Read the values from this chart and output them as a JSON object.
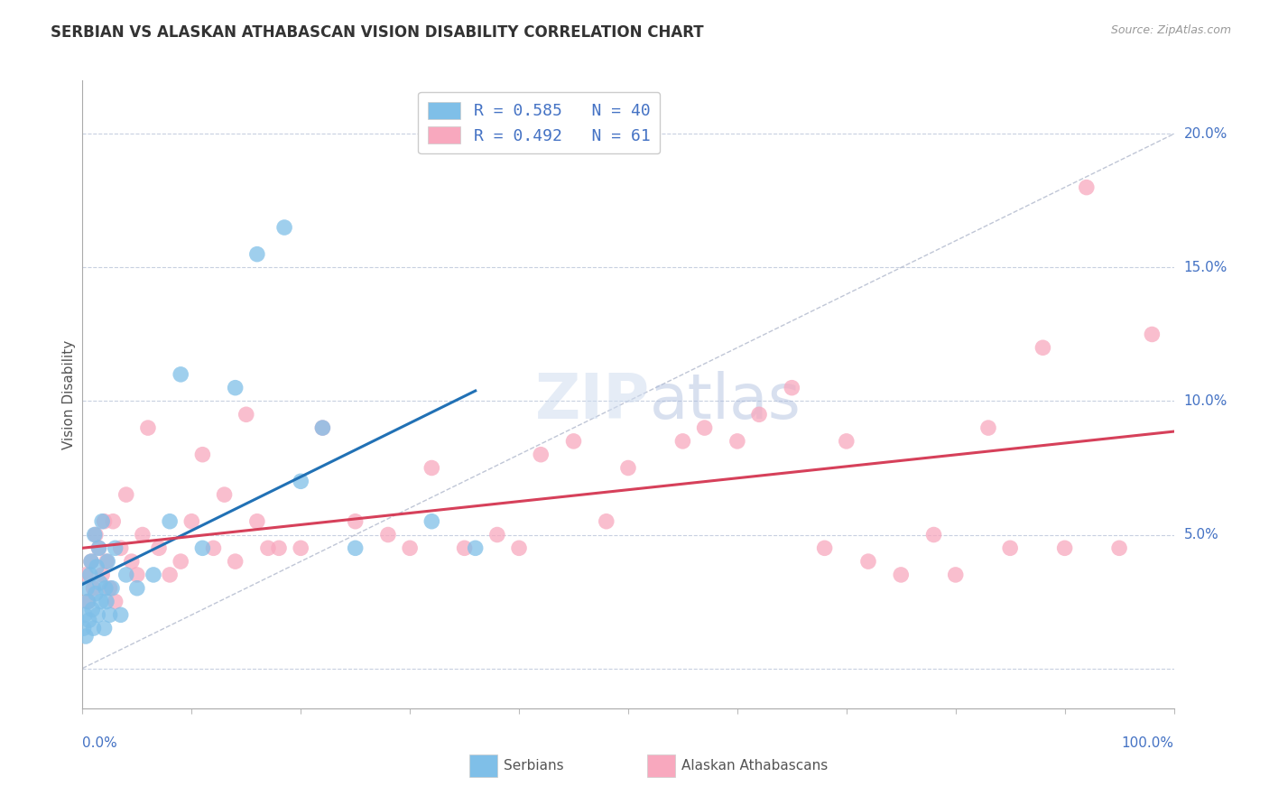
{
  "title": "SERBIAN VS ALASKAN ATHABASCAN VISION DISABILITY CORRELATION CHART",
  "source": "Source: ZipAtlas.com",
  "ylabel": "Vision Disability",
  "ytick_values": [
    0.0,
    5.0,
    10.0,
    15.0,
    20.0
  ],
  "serbian_color": "#7fbfe8",
  "athabascan_color": "#f8a8be",
  "serbian_line_color": "#2171b5",
  "athabascan_line_color": "#d6405a",
  "diagonal_color": "#b0b8cc",
  "grid_color": "#c8d0e0",
  "r_serbian": 0.585,
  "n_serbian": 40,
  "r_athabascan": 0.492,
  "n_athabascan": 61,
  "serbian_x": [
    0.1,
    0.2,
    0.3,
    0.4,
    0.5,
    0.6,
    0.7,
    0.8,
    0.9,
    1.0,
    1.1,
    1.2,
    1.3,
    1.4,
    1.5,
    1.6,
    1.7,
    1.8,
    2.0,
    2.1,
    2.2,
    2.3,
    2.5,
    2.7,
    3.0,
    3.5,
    4.0,
    5.0,
    6.5,
    8.0,
    9.0,
    11.0,
    14.0,
    16.0,
    18.5,
    20.0,
    22.0,
    25.0,
    32.0,
    36.0
  ],
  "serbian_y": [
    1.5,
    2.0,
    1.2,
    3.0,
    2.5,
    1.8,
    3.5,
    4.0,
    2.2,
    1.5,
    5.0,
    2.8,
    3.8,
    2.0,
    4.5,
    3.2,
    2.5,
    5.5,
    1.5,
    3.0,
    2.5,
    4.0,
    2.0,
    3.0,
    4.5,
    2.0,
    3.5,
    3.0,
    3.5,
    5.5,
    11.0,
    4.5,
    10.5,
    15.5,
    16.5,
    7.0,
    9.0,
    4.5,
    5.5,
    4.5
  ],
  "athabascan_x": [
    0.3,
    0.5,
    0.8,
    1.0,
    1.2,
    1.5,
    1.8,
    2.0,
    2.2,
    2.5,
    2.8,
    3.0,
    3.5,
    4.0,
    4.5,
    5.0,
    5.5,
    6.0,
    7.0,
    8.0,
    9.0,
    10.0,
    11.0,
    12.0,
    13.0,
    14.0,
    15.0,
    16.0,
    17.0,
    18.0,
    20.0,
    22.0,
    25.0,
    28.0,
    30.0,
    32.0,
    35.0,
    38.0,
    40.0,
    42.0,
    45.0,
    48.0,
    50.0,
    55.0,
    57.0,
    60.0,
    62.0,
    65.0,
    68.0,
    70.0,
    72.0,
    75.0,
    78.0,
    80.0,
    83.0,
    85.0,
    88.0,
    90.0,
    92.0,
    95.0,
    98.0
  ],
  "athabascan_y": [
    3.5,
    2.5,
    4.0,
    3.0,
    5.0,
    4.5,
    3.5,
    5.5,
    4.0,
    3.0,
    5.5,
    2.5,
    4.5,
    6.5,
    4.0,
    3.5,
    5.0,
    9.0,
    4.5,
    3.5,
    4.0,
    5.5,
    8.0,
    4.5,
    6.5,
    4.0,
    9.5,
    5.5,
    4.5,
    4.5,
    4.5,
    9.0,
    5.5,
    5.0,
    4.5,
    7.5,
    4.5,
    5.0,
    4.5,
    8.0,
    8.5,
    5.5,
    7.5,
    8.5,
    9.0,
    8.5,
    9.5,
    10.5,
    4.5,
    8.5,
    4.0,
    3.5,
    5.0,
    3.5,
    9.0,
    4.5,
    12.0,
    4.5,
    18.0,
    4.5,
    12.5
  ],
  "xlim": [
    0,
    100
  ],
  "ylim_bottom": -1.5,
  "ylim_top": 22.0
}
